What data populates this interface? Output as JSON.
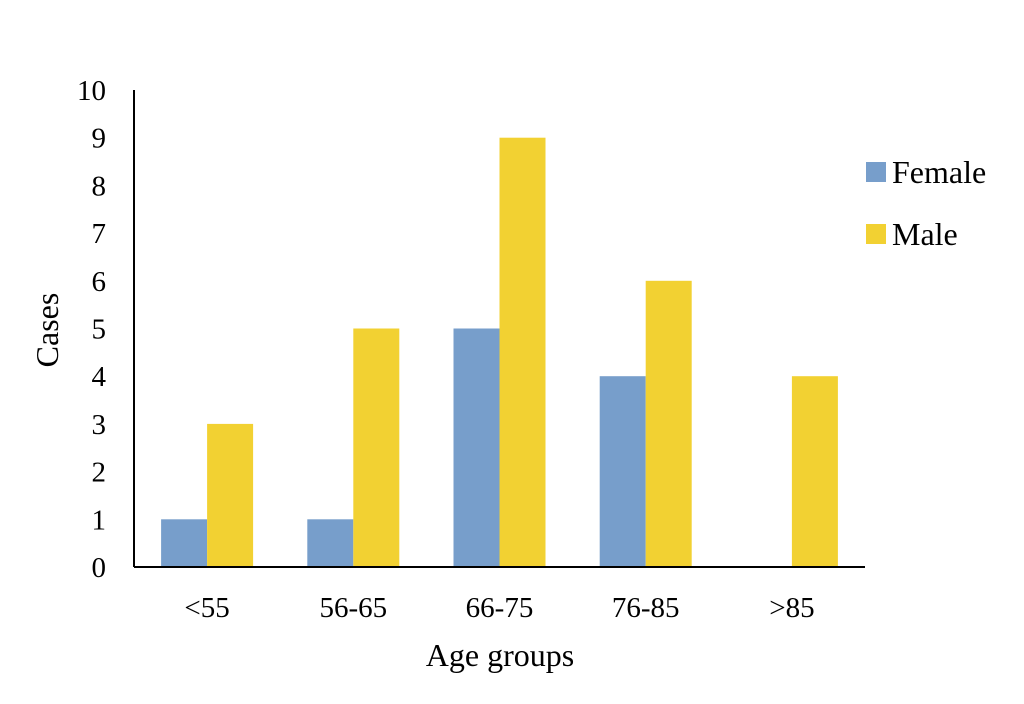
{
  "chart_data": {
    "type": "bar",
    "title": "",
    "xlabel": "Age groups",
    "ylabel": "Cases",
    "categories": [
      "<55",
      "56-65",
      "66-75",
      "76-85",
      ">85"
    ],
    "series": [
      {
        "name": "Female",
        "values": [
          1,
          1,
          5,
          4,
          0
        ],
        "color": "#779ECB"
      },
      {
        "name": "Male",
        "values": [
          3,
          5,
          9,
          6,
          4
        ],
        "color": "#F2D132"
      }
    ],
    "ylim": [
      0,
      10
    ],
    "yticks": [
      "0",
      "1",
      "2",
      "3",
      "4",
      "5",
      "6",
      "7",
      "8",
      "9",
      "10"
    ],
    "grid": false,
    "legend_position": "right"
  }
}
